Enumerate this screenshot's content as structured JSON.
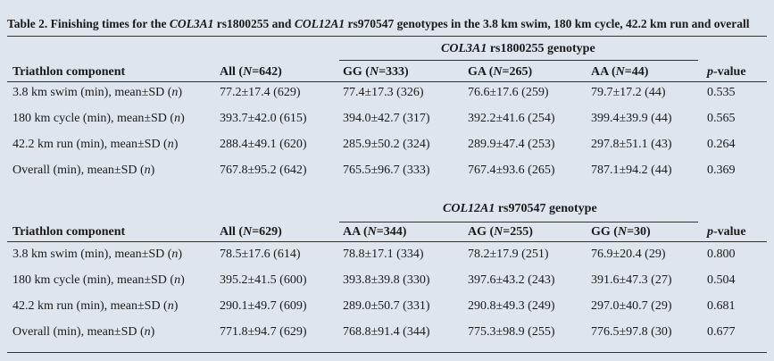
{
  "title": [
    "Table 2. Finishing times for the ",
    {
      "italic": "COL3A1"
    },
    " rs1800255 and ",
    {
      "italic": "COL12A1"
    },
    " rs970547 genotypes in the 3.8 km swim, 180 km cycle, 42.2 km run and overall"
  ],
  "tables": [
    {
      "group_header": [
        {
          "italic": "COL3A1"
        },
        " rs1800255 genotype"
      ],
      "columns": [
        "Triathlon component",
        [
          "All (",
          {
            "italic": "N"
          },
          "=642)"
        ],
        [
          "GG (",
          {
            "italic": "N"
          },
          "=333)"
        ],
        [
          "GA (",
          {
            "italic": "N"
          },
          "=265)"
        ],
        [
          "AA (",
          {
            "italic": "N"
          },
          "=44)"
        ],
        [
          {
            "italic": "p"
          },
          "-value"
        ]
      ],
      "rows": [
        [
          [
            "3.8 km swim (min), mean±SD (",
            {
              "italic": "n"
            },
            ")"
          ],
          "77.2±17.4 (629)",
          "77.4±17.3 (326)",
          "76.6±17.6 (259)",
          "79.7±17.2 (44)",
          "0.535"
        ],
        [
          [
            "180 km cycle (min), mean±SD (",
            {
              "italic": "n"
            },
            ")"
          ],
          "393.7±42.0 (615)",
          "394.0±42.7 (317)",
          "392.2±41.6 (254)",
          "399.4±39.9 (44)",
          "0.565"
        ],
        [
          [
            "42.2 km run (min), mean±SD (",
            {
              "italic": "n"
            },
            ")"
          ],
          "288.4±49.1 (620)",
          "285.9±50.2 (324)",
          "289.9±47.4 (253)",
          "297.8±51.1 (43)",
          "0.264"
        ],
        [
          [
            "Overall (min), mean±SD (",
            {
              "italic": "n"
            },
            ")"
          ],
          "767.8±95.2 (642)",
          "765.5±96.7 (333)",
          "767.4±93.6 (265)",
          "787.1±94.2 (44)",
          "0.369"
        ]
      ]
    },
    {
      "group_header": [
        {
          "italic": "COL12A1"
        },
        " rs970547 genotype"
      ],
      "columns": [
        "Triathlon component",
        [
          "All (",
          {
            "italic": "N"
          },
          "=629)"
        ],
        [
          "AA (",
          {
            "italic": "N"
          },
          "=344)"
        ],
        [
          "AG (",
          {
            "italic": "N"
          },
          "=255)"
        ],
        [
          "GG (",
          {
            "italic": "N"
          },
          "=30)"
        ],
        [
          {
            "italic": "p"
          },
          "-value"
        ]
      ],
      "rows": [
        [
          [
            "3.8 km swim (min), mean±SD (",
            {
              "italic": "n"
            },
            ")"
          ],
          "78.5±17.6 (614)",
          "78.8±17.1 (334)",
          "78.2±17.9 (251)",
          "76.9±20.4 (29)",
          "0.800"
        ],
        [
          [
            "180 km cycle (min), mean±SD (",
            {
              "italic": "n"
            },
            ")"
          ],
          "395.2±41.5 (600)",
          "393.8±39.8 (330)",
          "397.6±43.2 (243)",
          "391.6±47.3 (27)",
          "0.504"
        ],
        [
          [
            "42.2 km run (min), mean±SD (",
            {
              "italic": "n"
            },
            ")"
          ],
          "290.1±49.7 (609)",
          "289.0±50.7 (331)",
          "290.8±49.3 (249)",
          "297.0±40.7 (29)",
          "0.681"
        ],
        [
          [
            "Overall (min), mean±SD (",
            {
              "italic": "n"
            },
            ")"
          ],
          "771.8±94.7 (629)",
          "768.8±91.4 (344)",
          "775.3±98.9 (255)",
          "776.5±97.8 (30)",
          "0.677"
        ]
      ]
    }
  ]
}
